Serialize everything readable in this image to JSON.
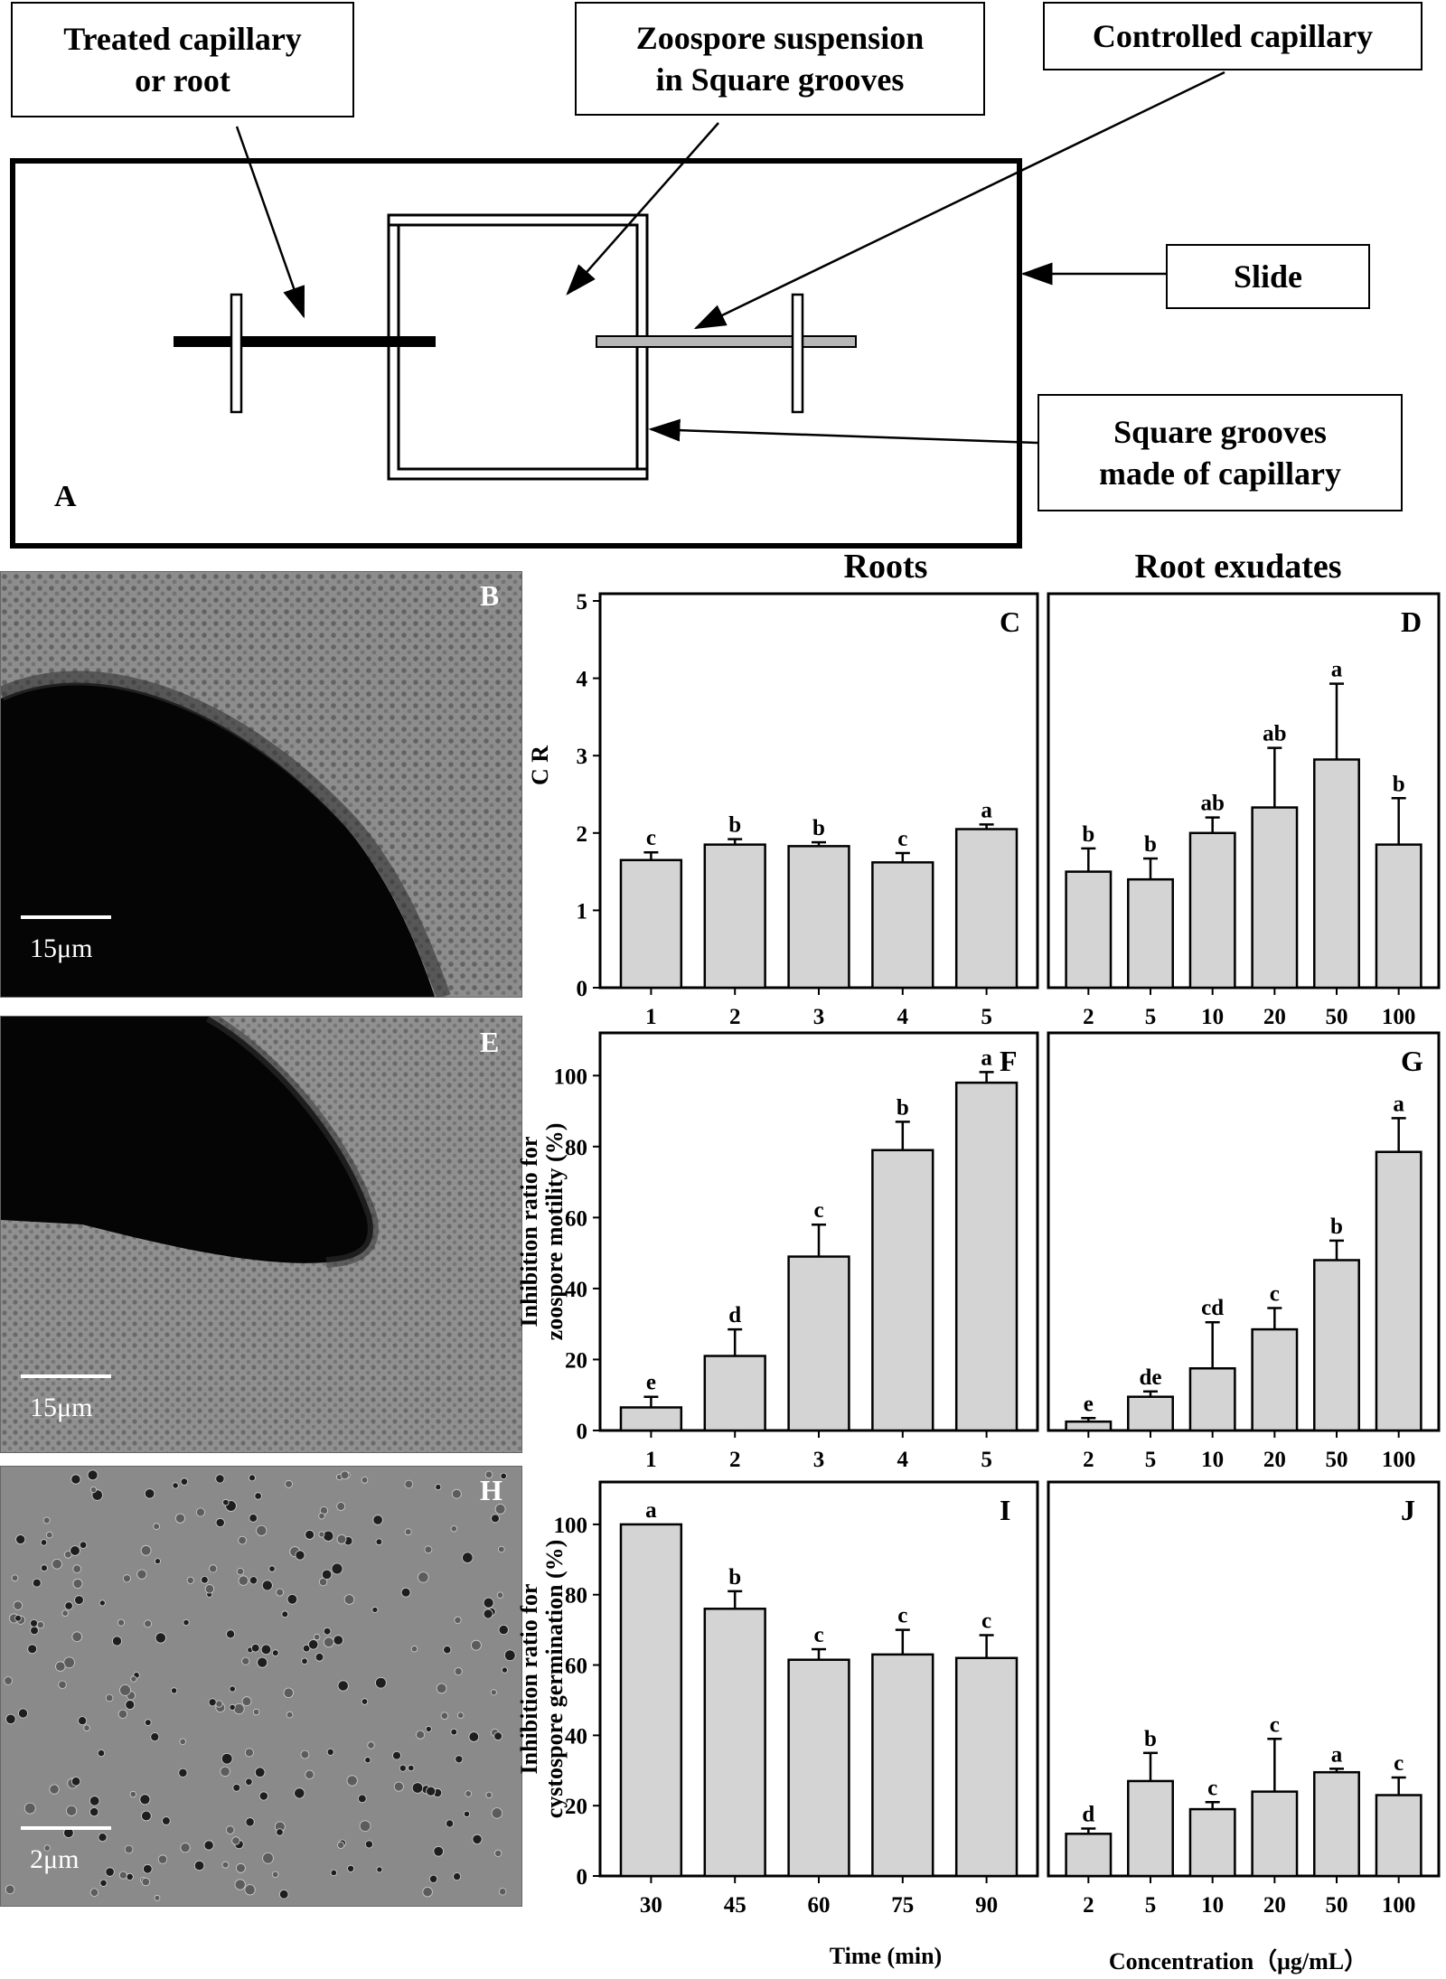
{
  "diagram": {
    "panel_letter": "A",
    "labels": {
      "treated_line1": "Treated capillary",
      "treated_line2": "or root",
      "zoospore_line1": "Zoospore suspension",
      "zoospore_line2": "in Square grooves",
      "controlled": "Controlled capillary",
      "slide": "Slide",
      "grooves_line1": "Square grooves",
      "grooves_line2": "made of capillary"
    }
  },
  "column_headers": {
    "left": "Roots",
    "right": "Root exudates"
  },
  "micrographs": [
    {
      "letter": "B",
      "scale_label": "15μm"
    },
    {
      "letter": "E",
      "scale_label": "15μm"
    },
    {
      "letter": "H",
      "scale_label": "2μm"
    }
  ],
  "axis_captions": {
    "time": "Time (min)",
    "concentration": "Concentration（μg/mL）"
  },
  "chart_data": [
    {
      "panel": "C",
      "type": "bar",
      "ylabel": "C R",
      "ylim": [
        0,
        5
      ],
      "yticks": [
        "0",
        "1",
        "2",
        "3",
        "4",
        "5"
      ],
      "categories": [
        "1",
        "2",
        "3",
        "4",
        "5"
      ],
      "values": [
        1.65,
        1.85,
        1.83,
        1.62,
        2.05
      ],
      "errors": [
        0.1,
        0.07,
        0.05,
        0.12,
        0.06
      ],
      "letters": [
        "c",
        "b",
        "b",
        "c",
        "a"
      ]
    },
    {
      "panel": "D",
      "type": "bar",
      "ylim": [
        0,
        5
      ],
      "categories": [
        "2",
        "5",
        "10",
        "20",
        "50",
        "100"
      ],
      "values": [
        1.5,
        1.4,
        2.0,
        2.33,
        2.95,
        1.85
      ],
      "errors": [
        0.3,
        0.27,
        0.2,
        0.77,
        0.98,
        0.6
      ],
      "letters": [
        "b",
        "b",
        "ab",
        "ab",
        "a",
        "b"
      ]
    },
    {
      "panel": "F",
      "type": "bar",
      "ylabel_line1": "Inhibition ratio for",
      "ylabel_line2": "zoospore motility (%)",
      "ylim": [
        0,
        110
      ],
      "yticks": [
        "0",
        "20",
        "40",
        "60",
        "80",
        "100"
      ],
      "categories": [
        "1",
        "2",
        "3",
        "4",
        "5"
      ],
      "values": [
        6.5,
        21,
        49,
        79,
        98
      ],
      "errors": [
        3,
        7.5,
        9,
        8,
        3
      ],
      "letters": [
        "e",
        "d",
        "c",
        "b",
        "a"
      ]
    },
    {
      "panel": "G",
      "type": "bar",
      "ylim": [
        0,
        110
      ],
      "categories": [
        "2",
        "5",
        "10",
        "20",
        "50",
        "100"
      ],
      "values": [
        2.5,
        9.5,
        17.5,
        28.5,
        48,
        78.5
      ],
      "errors": [
        1,
        1.5,
        13,
        6,
        5.5,
        9.5
      ],
      "letters": [
        "e",
        "de",
        "cd",
        "c",
        "b",
        "a"
      ]
    },
    {
      "panel": "I",
      "type": "bar",
      "ylabel_line1": "Inhibition ratio  for",
      "ylabel_line2": "cystospore germination (%)",
      "ylim": [
        0,
        110
      ],
      "yticks": [
        "0",
        "20",
        "40",
        "60",
        "80",
        "100"
      ],
      "categories": [
        "30",
        "45",
        "60",
        "75",
        "90"
      ],
      "values": [
        100,
        76,
        61.5,
        63,
        62
      ],
      "errors": [
        0,
        5,
        3,
        7,
        6.5
      ],
      "letters": [
        "a",
        "b",
        "c",
        "c",
        "c"
      ]
    },
    {
      "panel": "J",
      "type": "bar",
      "ylim": [
        0,
        110
      ],
      "categories": [
        "2",
        "5",
        "10",
        "20",
        "50",
        "100"
      ],
      "values": [
        12,
        27,
        19,
        24,
        29.5,
        23
      ],
      "errors": [
        1.5,
        8,
        2,
        15,
        1,
        5
      ],
      "letters": [
        "d",
        "b",
        "c",
        "c",
        "a",
        "c"
      ]
    }
  ]
}
